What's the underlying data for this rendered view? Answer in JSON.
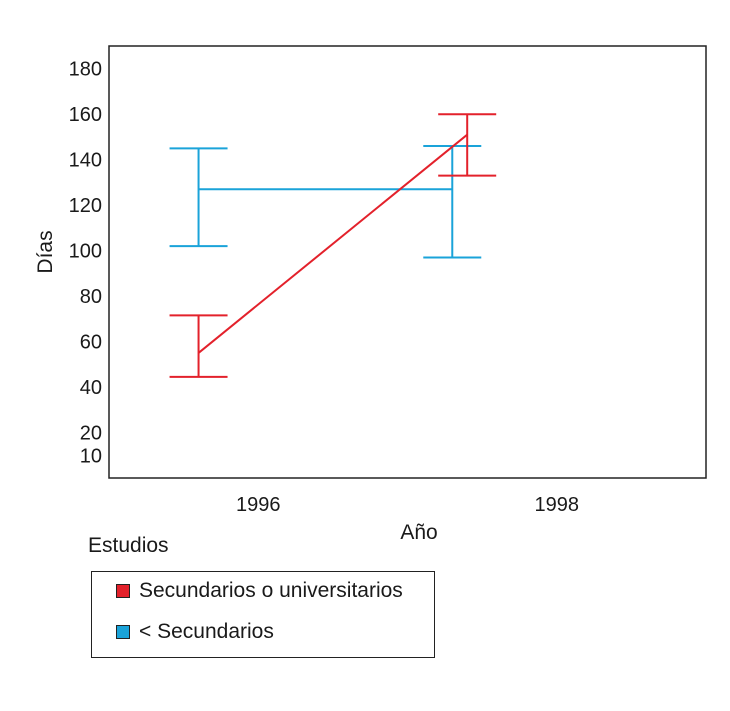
{
  "chart_data": {
    "type": "line",
    "title": "",
    "xlabel": "Año",
    "ylabel": "Días",
    "x_ticks": [
      "1996",
      "1998"
    ],
    "y_ticks": [
      10,
      20,
      40,
      60,
      80,
      100,
      120,
      140,
      160,
      180
    ],
    "ylim": [
      0,
      190
    ],
    "xlim": [
      1995,
      1999
    ],
    "grid": false,
    "legend_title": "Estudios",
    "legend_position": "below-left",
    "series": [
      {
        "name": "Secundarios o universitarios",
        "color": "#e3212b",
        "points": [
          {
            "x": 1995.6,
            "y": 55,
            "low": 44.5,
            "high": 71.5
          },
          {
            "x": 1997.4,
            "y": 151,
            "low": 133,
            "high": 160
          }
        ]
      },
      {
        "name": "< Secundarios",
        "color": "#1aa3d9",
        "points": [
          {
            "x": 1995.6,
            "y": 127,
            "low": 102,
            "high": 145
          },
          {
            "x": 1997.3,
            "y": 127,
            "low": 97,
            "high": 146
          }
        ]
      }
    ]
  }
}
